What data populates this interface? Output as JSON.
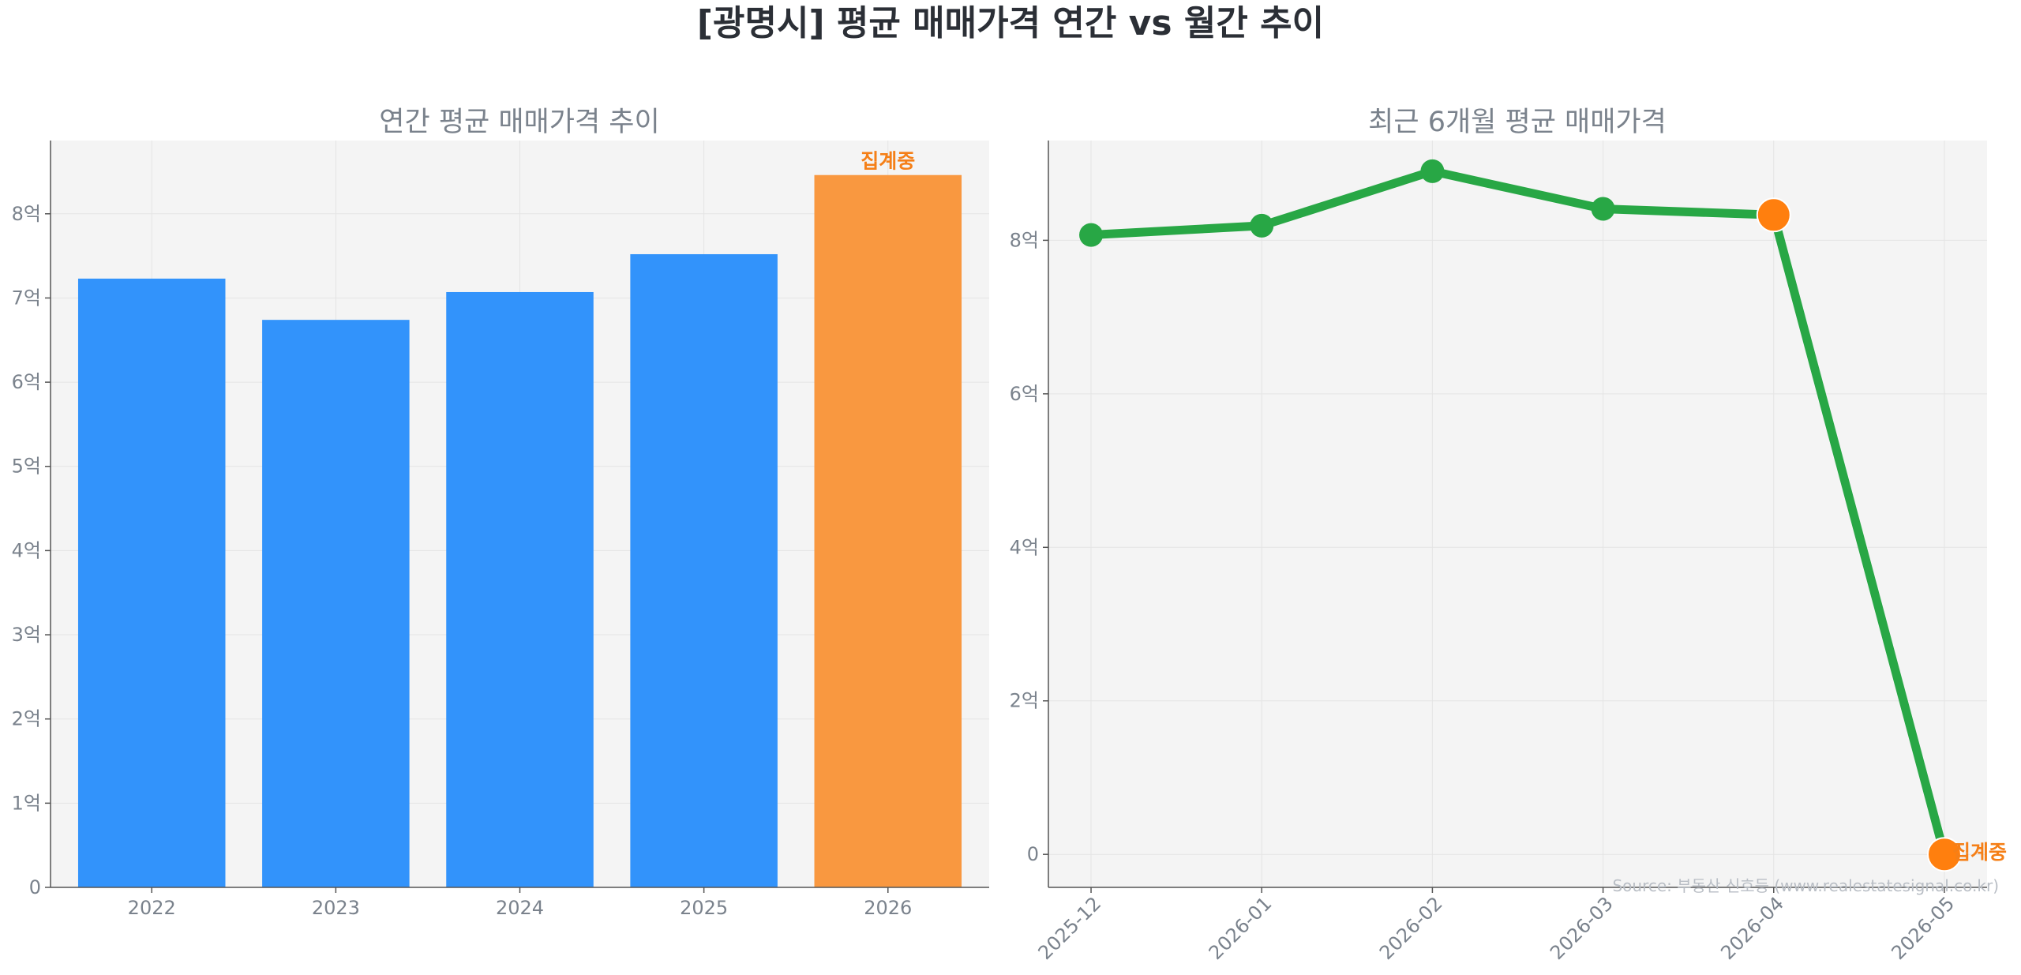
{
  "page": {
    "title": "[광명시] 평균 매매가격 연간 vs 월간 추이",
    "source": "Source: 부동산 신호등 (www.realestatesignal.co.kr)"
  },
  "colors": {
    "bar": "#3293fb",
    "bar_pending": "#f99840",
    "line": "#28a745",
    "marker": "#28a745",
    "marker_pending": "#ff7f0e",
    "pending_text": "#f57f17",
    "panel_bg": "#f4f4f4",
    "grid": "#e4e4e4",
    "axis_text": "#7a828c"
  },
  "chart_data": [
    {
      "type": "bar",
      "title": "연간 평균 매매가격 추이",
      "categories": [
        "2022",
        "2023",
        "2024",
        "2025",
        "2026"
      ],
      "values": [
        7.23,
        6.74,
        7.07,
        7.52,
        8.46
      ],
      "pending_index": 4,
      "pending_label": "집계중",
      "ylim": [
        0,
        8.87
      ],
      "yticks": [
        0,
        1,
        2,
        3,
        4,
        5,
        6,
        7,
        8
      ],
      "ytick_labels": [
        "0",
        "1억",
        "2억",
        "3억",
        "4억",
        "5억",
        "6억",
        "7억",
        "8억"
      ],
      "grid": true
    },
    {
      "type": "line",
      "title": "최근 6개월 평균 매매가격",
      "categories": [
        "2025-12",
        "2026-01",
        "2026-02",
        "2026-03",
        "2026-04",
        "2026-05"
      ],
      "values": [
        8.07,
        8.19,
        8.9,
        8.41,
        8.33,
        0
      ],
      "highlight_indices": [
        4,
        5
      ],
      "pending_index": 5,
      "pending_label": "집계중",
      "ylim": [
        -0.43,
        9.3
      ],
      "yticks": [
        0,
        2,
        4,
        6,
        8
      ],
      "ytick_labels": [
        "0",
        "2억",
        "4억",
        "6억",
        "8억"
      ],
      "grid": true
    }
  ]
}
